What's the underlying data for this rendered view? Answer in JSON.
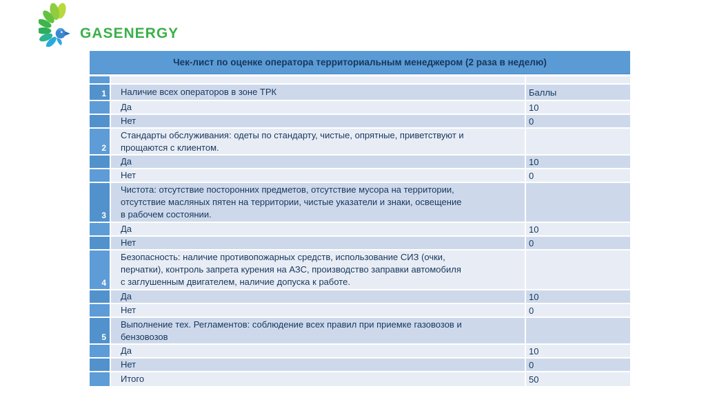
{
  "logo": {
    "text": "GASENERGY",
    "text_color": "#3bb04a",
    "icon": "phoenix-bird-icon",
    "icon_colors": [
      "#b8da3c",
      "#8fcc3f",
      "#63c23f",
      "#3eb549",
      "#2eae5b",
      "#2bb392",
      "#2aa9df",
      "#3c87cf",
      "#2a6db3"
    ]
  },
  "table": {
    "title": "Чек-лист по оценке оператора территориальным менеджером (2 раза в неделю)",
    "header_bg": "#5b9bd5",
    "header_text_color": "#17365d",
    "row_shade_light": "#e8edf5",
    "row_shade_dark": "#cdd9eb",
    "number_column_color": "#5b9bd5",
    "points_header": "Баллы",
    "rows": [
      {
        "type": "strip",
        "num": "",
        "text": "",
        "value": ""
      },
      {
        "type": "desc",
        "num": "1",
        "lines": 1,
        "text": "Наличие всех операторов в зоне ТРК",
        "value": "Баллы"
      },
      {
        "type": "answer",
        "num": "",
        "text": "Да",
        "value": "10"
      },
      {
        "type": "answer",
        "num": "",
        "text": "Нет",
        "value": "0"
      },
      {
        "type": "desc",
        "num": "2",
        "lines": 2,
        "text": "Стандарты обслуживания: одеты по стандарту, чистые, опрятные, приветствуют и\nпрощаются с клиентом.",
        "value": ""
      },
      {
        "type": "answer",
        "num": "",
        "text": "Да",
        "value": "10"
      },
      {
        "type": "answer",
        "num": "",
        "text": "Нет",
        "value": "0"
      },
      {
        "type": "desc",
        "num": "3",
        "lines": 3,
        "text": "Чистота: отсутствие посторонних предметов, отсутствие мусора на территории,\nотсутствие масляных пятен на территории, чистые указатели и знаки, освещение\nв рабочем состоянии.",
        "value": ""
      },
      {
        "type": "answer",
        "num": "",
        "text": "Да",
        "value": "10"
      },
      {
        "type": "answer",
        "num": "",
        "text": "Нет",
        "value": "0"
      },
      {
        "type": "desc",
        "num": "4",
        "lines": 3,
        "text": "Безопасность: наличие противопожарных средств, использование СИЗ (очки,\nперчатки), контроль запрета курения на АЗС, производство заправки автомобиля\nс заглушенным двигателем, наличие допуска к работе.",
        "value": ""
      },
      {
        "type": "answer",
        "num": "",
        "text": "Да",
        "value": "10"
      },
      {
        "type": "answer",
        "num": "",
        "text": "Нет",
        "value": "0"
      },
      {
        "type": "desc",
        "num": "5",
        "lines": 2,
        "text": "Выполнение тех. Регламентов: соблюдение всех правил при приемке газовозов и\nбензовозов",
        "value": ""
      },
      {
        "type": "answer",
        "num": "",
        "text": "Да",
        "value": "10"
      },
      {
        "type": "answer",
        "num": "",
        "text": "Нет",
        "value": "0"
      },
      {
        "type": "total",
        "num": "",
        "text": "Итого",
        "value": "50"
      }
    ]
  }
}
